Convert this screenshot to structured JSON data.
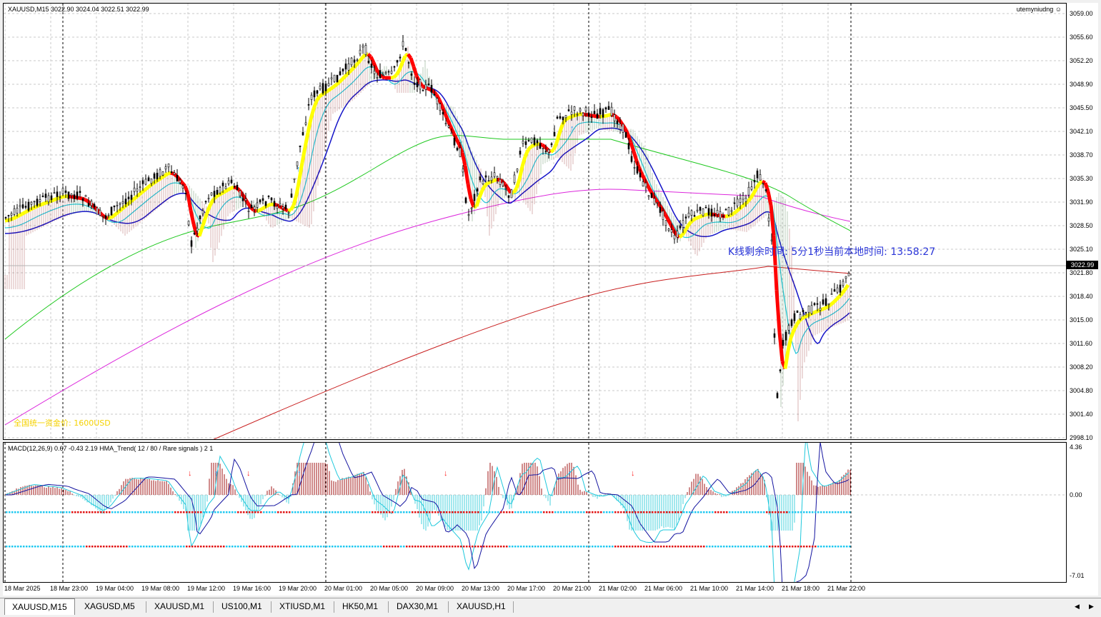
{
  "chart": {
    "symbol_info": "XAUUSD,M15  3022.90 3024.04 3022.51 3022.99",
    "account": "utemyniudng",
    "timer_text": "K线剩余时间: 5分1秒当前本地时间: 13:58:27",
    "yellow_text": "全国统一资金价: 1600USD",
    "current_price": "3022.99"
  },
  "price_axis": [
    "3059.00",
    "3055.60",
    "3052.20",
    "3048.90",
    "3045.50",
    "3042.10",
    "3038.70",
    "3035.30",
    "3031.90",
    "3028.50",
    "3025.10",
    "3021.80",
    "3018.40",
    "3015.00",
    "3011.60",
    "3008.20",
    "3004.80",
    "3001.40",
    "2998.10"
  ],
  "macd": {
    "label": "MACD(12,26,9) 0.67 -0.43 2.19  HMA_Trend( 12 / 80 / Rare signals ) 2 1",
    "axis": [
      "4.36",
      "0.00",
      "-7.01"
    ]
  },
  "time_axis": [
    "18 Mar 2025",
    "18 Mar 23:00",
    "19 Mar 04:00",
    "19 Mar 08:00",
    "19 Mar 12:00",
    "19 Mar 16:00",
    "19 Mar 20:00",
    "20 Mar 01:00",
    "20 Mar 05:00",
    "20 Mar 09:00",
    "20 Mar 13:00",
    "20 Mar 17:00",
    "20 Mar 21:00",
    "21 Mar 02:00",
    "21 Mar 06:00",
    "21 Mar 10:00",
    "21 Mar 14:00",
    "21 Mar 18:00",
    "21 Mar 22:00"
  ],
  "tabs": [
    "XAUUSD,M15",
    "XAGUSD,M5",
    "XAUUSD,M1",
    "US100,M1",
    "XTIUSD,M1",
    "HK50,M1",
    "DAX30,M1",
    "XAUUSD,H1"
  ],
  "colors": {
    "ema_blue": "#1414c8",
    "ema_cyan": "#1ec8dc",
    "ema_green": "#1ec81e",
    "ema_magenta": "#dc28dc",
    "ema_red": "#c81e1e",
    "trend_red": "#ff0000",
    "trend_yellow": "#ffff00",
    "macd_hist_pos": "#a01414",
    "macd_hist_neg": "#46d2dc"
  }
}
